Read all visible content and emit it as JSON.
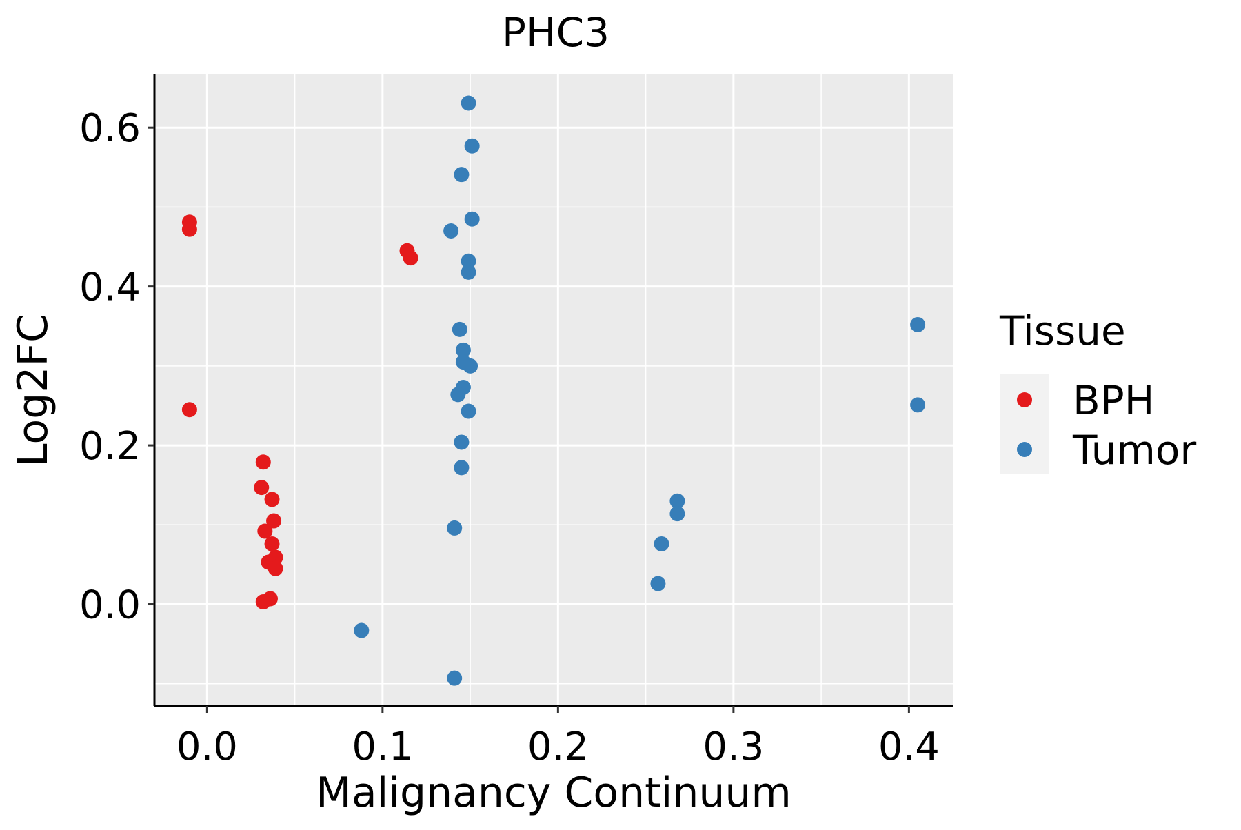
{
  "chart_data": {
    "type": "scatter",
    "title": "PHC3",
    "xlabel": "Malignancy Continuum",
    "ylabel": "Log2FC",
    "xlim": [
      -0.03,
      0.425
    ],
    "ylim": [
      -0.128,
      0.667
    ],
    "xticks": [
      0.0,
      0.1,
      0.2,
      0.3,
      0.4
    ],
    "xtick_labels": [
      "0.0",
      "0.1",
      "0.2",
      "0.3",
      "0.4"
    ],
    "yticks": [
      0.0,
      0.2,
      0.4,
      0.6
    ],
    "ytick_labels": [
      "0.0",
      "0.2",
      "0.4",
      "0.6"
    ],
    "grid": true,
    "legend": {
      "title": "Tissue",
      "position": "right",
      "entries": [
        "BPH",
        "Tumor"
      ]
    },
    "series": [
      {
        "name": "BPH",
        "color": "#E41A1C",
        "points": [
          [
            -0.01,
            0.481
          ],
          [
            -0.01,
            0.472
          ],
          [
            -0.01,
            0.245
          ],
          [
            0.114,
            0.445
          ],
          [
            0.116,
            0.436
          ],
          [
            0.032,
            0.179
          ],
          [
            0.031,
            0.147
          ],
          [
            0.037,
            0.132
          ],
          [
            0.038,
            0.105
          ],
          [
            0.033,
            0.092
          ],
          [
            0.037,
            0.076
          ],
          [
            0.039,
            0.059
          ],
          [
            0.035,
            0.053
          ],
          [
            0.039,
            0.045
          ],
          [
            0.036,
            0.007
          ],
          [
            0.032,
            0.003
          ]
        ]
      },
      {
        "name": "Tumor",
        "color": "#377EB8",
        "points": [
          [
            0.149,
            0.631
          ],
          [
            0.151,
            0.577
          ],
          [
            0.145,
            0.541
          ],
          [
            0.151,
            0.485
          ],
          [
            0.139,
            0.47
          ],
          [
            0.149,
            0.432
          ],
          [
            0.149,
            0.418
          ],
          [
            0.144,
            0.346
          ],
          [
            0.146,
            0.32
          ],
          [
            0.146,
            0.305
          ],
          [
            0.15,
            0.3
          ],
          [
            0.146,
            0.273
          ],
          [
            0.143,
            0.264
          ],
          [
            0.149,
            0.243
          ],
          [
            0.145,
            0.204
          ],
          [
            0.145,
            0.172
          ],
          [
            0.141,
            0.096
          ],
          [
            0.088,
            -0.033
          ],
          [
            0.141,
            -0.093
          ],
          [
            0.268,
            0.13
          ],
          [
            0.268,
            0.114
          ],
          [
            0.259,
            0.076
          ],
          [
            0.257,
            0.026
          ],
          [
            0.405,
            0.352
          ],
          [
            0.405,
            0.251
          ]
        ]
      }
    ]
  }
}
